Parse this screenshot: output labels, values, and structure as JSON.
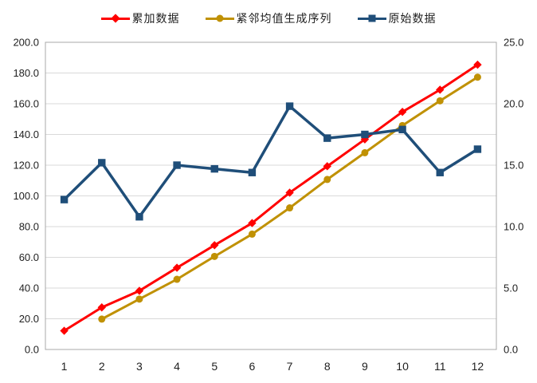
{
  "chart_data": {
    "type": "line",
    "title": "",
    "x": [
      "1",
      "2",
      "3",
      "4",
      "5",
      "6",
      "7",
      "8",
      "9",
      "10",
      "11",
      "12"
    ],
    "series": [
      {
        "id": "cumulative-data",
        "name": "累加数据",
        "marker": "diamond",
        "color": "#FF0000",
        "axis": "left",
        "values": [
          12.2,
          27.4,
          38.2,
          53.2,
          67.9,
          82.3,
          102.1,
          119.3,
          136.8,
          154.7,
          169.1,
          185.4
        ]
      },
      {
        "id": "adjacent-mean-sequence",
        "name": "紧邻均值生成序列",
        "marker": "circle",
        "color": "#C09104",
        "axis": "left",
        "values": [
          null,
          19.8,
          32.8,
          45.7,
          60.6,
          75.1,
          92.2,
          110.7,
          128.1,
          145.8,
          161.9,
          177.3
        ]
      },
      {
        "id": "original-data",
        "name": "原始数据",
        "marker": "square",
        "color": "#1F4E79",
        "axis": "right",
        "values": [
          12.2,
          15.2,
          10.8,
          15.0,
          14.7,
          14.4,
          19.8,
          17.2,
          17.5,
          17.9,
          14.4,
          16.3
        ]
      }
    ],
    "left_axis": {
      "min": 0,
      "max": 200,
      "step": 20,
      "labels": [
        "0.0",
        "20.0",
        "40.0",
        "60.0",
        "80.0",
        "100.0",
        "120.0",
        "140.0",
        "160.0",
        "180.0",
        "200.0"
      ]
    },
    "right_axis": {
      "min": 0,
      "max": 25,
      "step": 5,
      "labels": [
        "0.0",
        "5.0",
        "10.0",
        "15.0",
        "20.0",
        "25.0"
      ]
    },
    "grid": true,
    "legend_position": "top",
    "colors": {
      "gridline": "#D9D9D9",
      "border": "#A9A9A9",
      "text": "#1F1F1F",
      "background": "#FFFFFF"
    }
  }
}
